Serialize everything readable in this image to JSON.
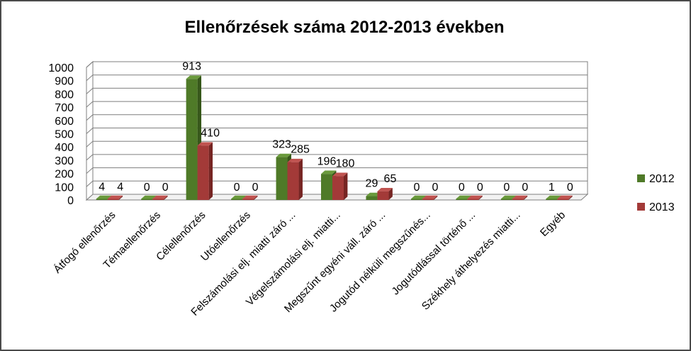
{
  "chart_data": {
    "type": "bar",
    "title": "Ellenőrzések száma 2012-2013 években",
    "categories": [
      "Átfogó ellenőrzés",
      "Témaellenőrzés",
      "Célellenőrzés",
      "Utóellenőrzés",
      "Felszámolási elj. miatti záró ...",
      "Végelszámolási elj. miatti...",
      "Megszűnt egyéni váll. záró ...",
      "Jogutód nélküli megszűnés...",
      "Jogutódlással történő ...",
      "Székhely áthelyezés miatti...",
      "Egyéb"
    ],
    "series": [
      {
        "name": "2012",
        "values": [
          4,
          0,
          913,
          0,
          323,
          196,
          29,
          0,
          0,
          0,
          1
        ]
      },
      {
        "name": "2013",
        "values": [
          4,
          0,
          410,
          0,
          285,
          180,
          65,
          0,
          0,
          0,
          0
        ]
      }
    ],
    "yticks": [
      "0",
      "100",
      "200",
      "300",
      "400",
      "500",
      "600",
      "700",
      "800",
      "900",
      "1000"
    ],
    "ylim": [
      0,
      1000
    ],
    "grid": true,
    "legend": "right",
    "colors": {
      "series_2012_front": "#4f7a28",
      "series_2012_side": "#36571a",
      "series_2012_top": "#6a9a3c",
      "series_2013_front": "#a33a38",
      "series_2013_side": "#762523",
      "series_2013_top": "#c05350",
      "grid": "#7f7f7f",
      "floor": "#f2f2f2"
    }
  }
}
